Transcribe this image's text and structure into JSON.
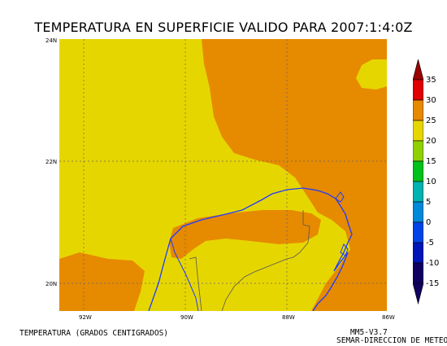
{
  "title": "TEMPERATURA EN SUPERFICIE VALIDO PARA 2007:1:4:0Z",
  "map": {
    "lat_labels": [
      "24N",
      "22N",
      "20N"
    ],
    "lon_labels": [
      "92W",
      "90W",
      "88W",
      "86W"
    ],
    "fill_colors": {
      "20_25": "#e6d600",
      "25_30": "#e68a00"
    },
    "coastline_color": "#1f3bff",
    "border_color": "#555555",
    "grid_color": "#666666"
  },
  "colorbar": {
    "labels": [
      "35",
      "30",
      "25",
      "20",
      "15",
      "10",
      "5",
      "0",
      "-5",
      "-10",
      "-15"
    ],
    "colors": [
      "#9a0000",
      "#e00000",
      "#e68a00",
      "#e6d600",
      "#8fd100",
      "#00c21a",
      "#00b2b2",
      "#0089d8",
      "#0044e8",
      "#0016b8",
      "#100060"
    ]
  },
  "footer": {
    "left": "TEMPERATURA (GRADOS CENTIGRADOS)",
    "right_line1": "MM5-V3.7",
    "right_line2": "SEMAR-DIRECCION DE METEO"
  }
}
